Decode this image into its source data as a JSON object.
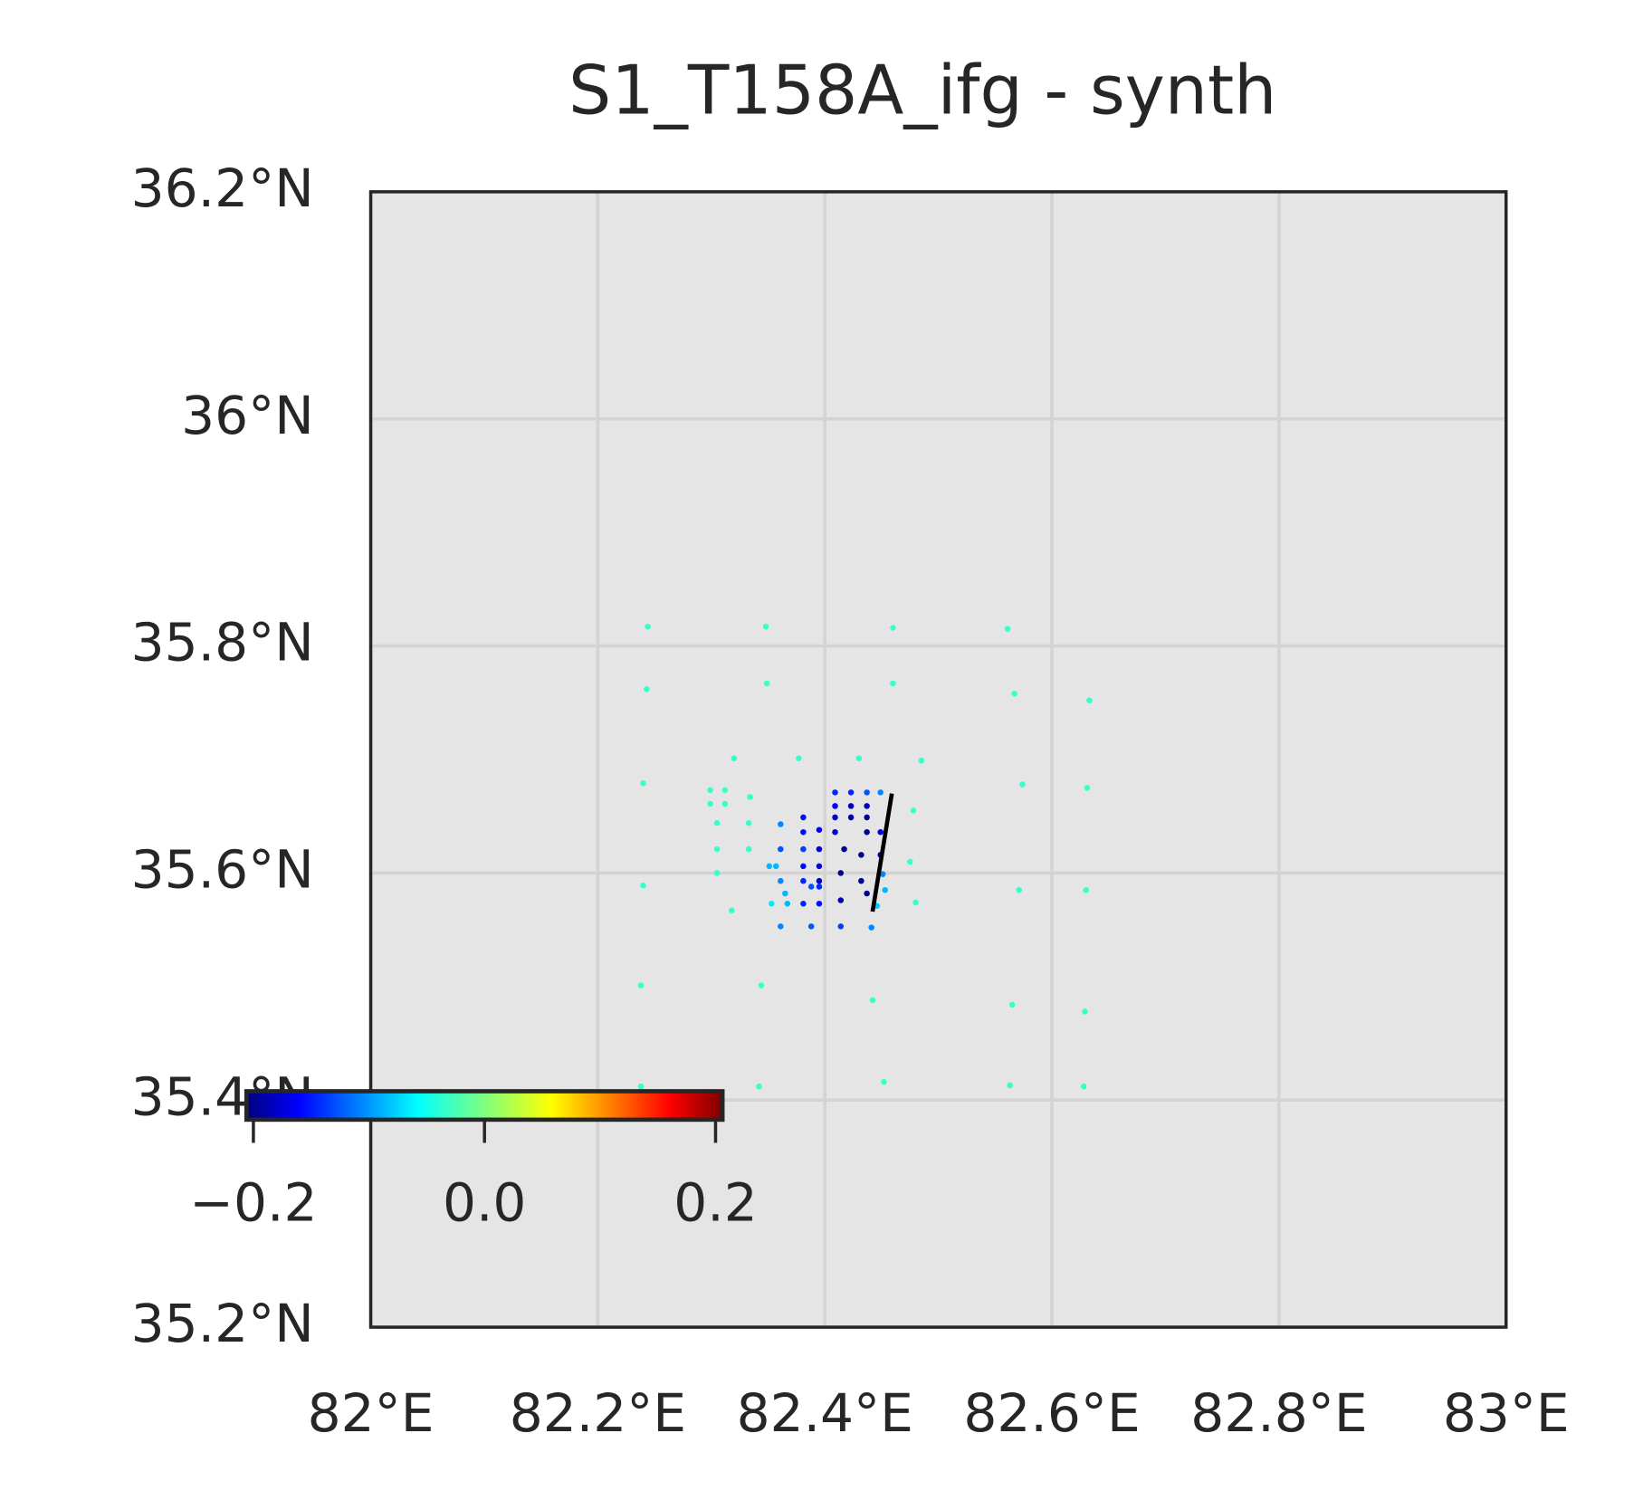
{
  "chart_data": {
    "type": "scatter",
    "title": "S1_T158A_ifg - synth",
    "xlim": [
      82,
      83
    ],
    "ylim": [
      35.2,
      36.2
    ],
    "xticks": [
      {
        "value": 82,
        "label": "82°E"
      },
      {
        "value": 82.2,
        "label": "82.2°E"
      },
      {
        "value": 82.4,
        "label": "82.4°E"
      },
      {
        "value": 82.6,
        "label": "82.6°E"
      },
      {
        "value": 82.8,
        "label": "82.8°E"
      },
      {
        "value": 83,
        "label": "83°E"
      }
    ],
    "yticks": [
      {
        "value": 35.2,
        "label": "35.2°N"
      },
      {
        "value": 35.4,
        "label": "35.4°N"
      },
      {
        "value": 35.6,
        "label": "35.6°N"
      },
      {
        "value": 35.8,
        "label": "35.8°N"
      },
      {
        "value": 36,
        "label": "36°N"
      },
      {
        "value": 36.2,
        "label": "36.2°N"
      }
    ],
    "grid": true,
    "colormap": "jet",
    "clim": [
      -0.206,
      0.206
    ],
    "colorbar_ticks": [
      {
        "value": -0.2,
        "label": "−0.2"
      },
      {
        "value": 0,
        "label": "0.0"
      },
      0.2
    ],
    "x": [
      82.244,
      82.348,
      82.46,
      82.561,
      82.243,
      82.349,
      82.46,
      82.567,
      82.633,
      82.32,
      82.377,
      82.43,
      82.485,
      82.24,
      82.574,
      82.631,
      82.24,
      82.571,
      82.63,
      82.238,
      82.344,
      82.442,
      82.565,
      82.629,
      82.238,
      82.342,
      82.452,
      82.563,
      82.628,
      82.299,
      82.312,
      82.299,
      82.312,
      82.334,
      82.478,
      82.305,
      82.333,
      82.305,
      82.333,
      82.475,
      82.305,
      82.48,
      82.318,
      82.361,
      82.361,
      82.351,
      82.357,
      82.361,
      82.365,
      82.353,
      82.367,
      82.381,
      82.381,
      82.381,
      82.381,
      82.381,
      82.381,
      82.395,
      82.395,
      82.395,
      82.395,
      82.395,
      82.409,
      82.409,
      82.409,
      82.409,
      82.417,
      82.414,
      82.414,
      82.423,
      82.423,
      82.423,
      82.437,
      82.437,
      82.437,
      82.437,
      82.432,
      82.432,
      82.437,
      82.449,
      82.449,
      82.449,
      82.451,
      82.453,
      82.446,
      82.361,
      82.388,
      82.414,
      82.441,
      82.388,
      82.395
    ],
    "y": [
      35.817,
      35.817,
      35.816,
      35.815,
      35.762,
      35.767,
      35.767,
      35.758,
      35.752,
      35.701,
      35.701,
      35.701,
      35.699,
      35.679,
      35.678,
      35.675,
      35.589,
      35.585,
      35.585,
      35.501,
      35.501,
      35.488,
      35.484,
      35.478,
      35.412,
      35.412,
      35.416,
      35.413,
      35.412,
      35.673,
      35.673,
      35.661,
      35.661,
      35.667,
      35.655,
      35.644,
      35.644,
      35.621,
      35.621,
      35.61,
      35.6,
      35.574,
      35.567,
      35.643,
      35.621,
      35.606,
      35.606,
      35.593,
      35.582,
      35.573,
      35.573,
      35.649,
      35.636,
      35.621,
      35.606,
      35.593,
      35.573,
      35.638,
      35.621,
      35.606,
      35.593,
      35.573,
      35.671,
      35.659,
      35.649,
      35.636,
      35.621,
      35.6,
      35.576,
      35.671,
      35.659,
      35.649,
      35.671,
      35.659,
      35.649,
      35.636,
      35.616,
      35.593,
      35.582,
      35.671,
      35.636,
      35.616,
      35.599,
      35.585,
      35.571,
      35.553,
      35.553,
      35.553,
      35.552,
      35.588,
      35.588
    ],
    "values": [
      -0.03,
      -0.03,
      -0.03,
      -0.03,
      -0.03,
      -0.03,
      -0.03,
      -0.03,
      -0.03,
      -0.03,
      -0.03,
      -0.03,
      -0.03,
      -0.03,
      -0.03,
      -0.03,
      -0.03,
      -0.03,
      -0.03,
      -0.03,
      -0.03,
      -0.03,
      -0.03,
      -0.03,
      -0.03,
      -0.03,
      -0.03,
      -0.03,
      -0.03,
      -0.03,
      -0.03,
      -0.03,
      -0.03,
      -0.03,
      -0.03,
      -0.03,
      -0.03,
      -0.03,
      -0.03,
      -0.03,
      -0.03,
      -0.03,
      -0.03,
      -0.1,
      -0.12,
      -0.08,
      -0.08,
      -0.1,
      -0.08,
      -0.06,
      -0.08,
      -0.15,
      -0.15,
      -0.13,
      -0.15,
      -0.14,
      -0.14,
      -0.16,
      -0.17,
      -0.17,
      -0.18,
      -0.15,
      -0.14,
      -0.16,
      -0.18,
      -0.17,
      -0.2,
      -0.2,
      -0.19,
      -0.14,
      -0.18,
      -0.19,
      -0.12,
      -0.18,
      -0.2,
      -0.2,
      -0.2,
      -0.2,
      -0.2,
      -0.1,
      -0.17,
      -0.18,
      -0.1,
      -0.08,
      -0.07,
      -0.1,
      -0.12,
      -0.13,
      -0.1,
      -0.12,
      -0.14
    ],
    "fault": {
      "x": [
        82.459,
        82.442
      ],
      "y": [
        35.67,
        35.566
      ]
    }
  }
}
